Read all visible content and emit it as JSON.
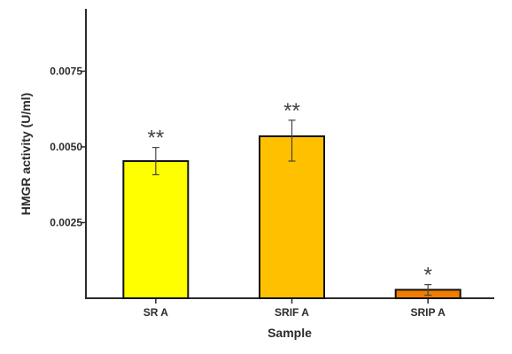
{
  "chart_data": {
    "type": "bar",
    "xlabel": "Sample",
    "ylabel": "HMGR activity (U/ml)",
    "ylim": [
      0,
      0.0095
    ],
    "y_ticks": [
      0.0025,
      0.005,
      0.0075
    ],
    "y_tick_labels": [
      "0.0025",
      "0.0050",
      "0.0075"
    ],
    "categories": [
      "SR A",
      "SRIF A",
      "SRIP A"
    ],
    "values": [
      0.00453,
      0.00535,
      0.00028
    ],
    "error_low": [
      0.00408,
      0.00453,
      0.0001
    ],
    "error_high": [
      0.00498,
      0.00588,
      0.00045
    ],
    "significance": [
      "**",
      "**",
      "*"
    ],
    "colors": [
      "#ffff00",
      "#ffc000",
      "#f07d00"
    ],
    "grid": false,
    "legend": "none"
  }
}
